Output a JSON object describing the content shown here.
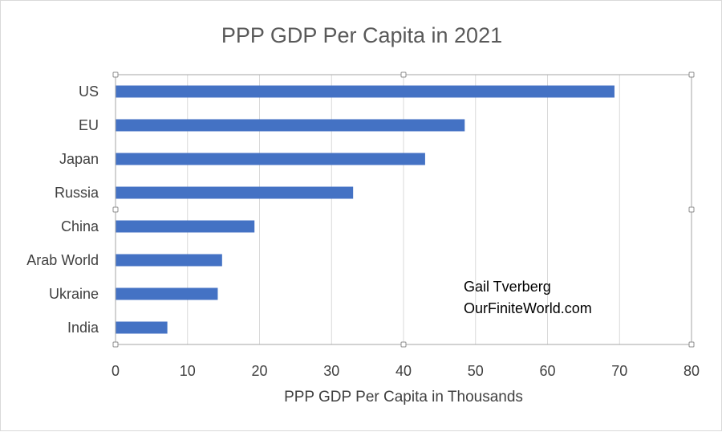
{
  "chart_data": {
    "type": "bar",
    "orientation": "horizontal",
    "title": "PPP GDP Per Capita in 2021",
    "xlabel": "PPP GDP Per Capita in Thousands",
    "ylabel": "",
    "categories": [
      "US",
      "EU",
      "Japan",
      "Russia",
      "China",
      "Arab World",
      "Ukraine",
      "India"
    ],
    "values": [
      69.3,
      48.5,
      43,
      33,
      19.3,
      14.8,
      14.2,
      7.2
    ],
    "xlim": [
      0,
      80
    ],
    "xticks": [
      0,
      10,
      20,
      30,
      40,
      50,
      60,
      70,
      80
    ],
    "grid": true,
    "bar_color": "#4472C4",
    "annotation": [
      "Gail Tverberg",
      "OurFiniteWorld.com"
    ]
  }
}
